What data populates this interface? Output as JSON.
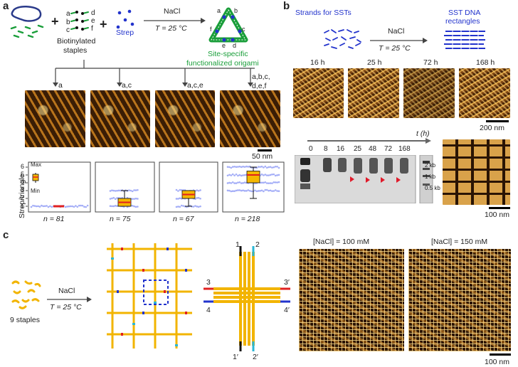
{
  "panel_a": {
    "letter": "a",
    "biotin_label_line1": "Biotinylated",
    "biotin_label_line2": "staples",
    "staple_letters": [
      "a",
      "b",
      "c",
      "d",
      "e",
      "f"
    ],
    "strep_label": "Strep",
    "reaction_top": "NaCl",
    "reaction_bottom": "T = 25 °C",
    "origami_letters": [
      "a",
      "b",
      "c",
      "d",
      "e",
      "f"
    ],
    "product_line1": "Site-specific",
    "product_line2": "functionalized origami",
    "branch_labels": [
      "a",
      "a,c",
      "a,c,e",
      "a,b,c,\nd,e,f"
    ],
    "branch_label_last_line1": "a,b,c,",
    "branch_label_last_line2": "d,e,f",
    "scale": "50 nm",
    "y_axis_label": "Strep/triangle",
    "y_ticks": [
      "0",
      "1",
      "2",
      "3",
      "4",
      "5",
      "6"
    ],
    "box_max": "Max",
    "box_min": "Min",
    "n_labels": [
      "n = 81",
      "n = 75",
      "n = 67",
      "n = 218"
    ],
    "colors": {
      "product": "#1a9e3a",
      "strep": "#2233cc",
      "box": "#f5b800",
      "median": "#e02020",
      "points": "#5a6cf0"
    }
  },
  "panel_b": {
    "letter": "b",
    "left_label": "Strands for SSTs",
    "reaction_top": "NaCl",
    "reaction_bottom": "T = 25 °C",
    "right_label_line1": "SST DNA",
    "right_label_line2": "rectangles",
    "time_labels": [
      "16 h",
      "25 h",
      "72 h",
      "168 h"
    ],
    "scale_top": "200 nm",
    "t_axis": "t (h)",
    "lanes": [
      "0",
      "8",
      "16",
      "25",
      "48",
      "72",
      "168"
    ],
    "ladder": [
      "2 kb",
      "1 kb",
      "0.5 kb"
    ],
    "scale_bottom": "100 nm",
    "colors": {
      "label": "#2233cc",
      "arrow": "#e01a2a"
    }
  },
  "panel_c": {
    "letter": "c",
    "staples_label": "9 staples",
    "reaction_top": "NaCl",
    "reaction_bottom": "T = 25 °C",
    "tile_ports": [
      "1",
      "2",
      "3",
      "3′",
      "4",
      "4′",
      "1′",
      "2′"
    ],
    "image_titles": [
      "[NaCl] = 100 mM",
      "[NaCl] = 150 mM"
    ],
    "scale": "100 nm",
    "colors": {
      "tile": "#f2b400",
      "port_red": "#e02020",
      "port_blue": "#2233cc",
      "port_cyan": "#2ab7d6",
      "dash": "#2233cc"
    }
  }
}
